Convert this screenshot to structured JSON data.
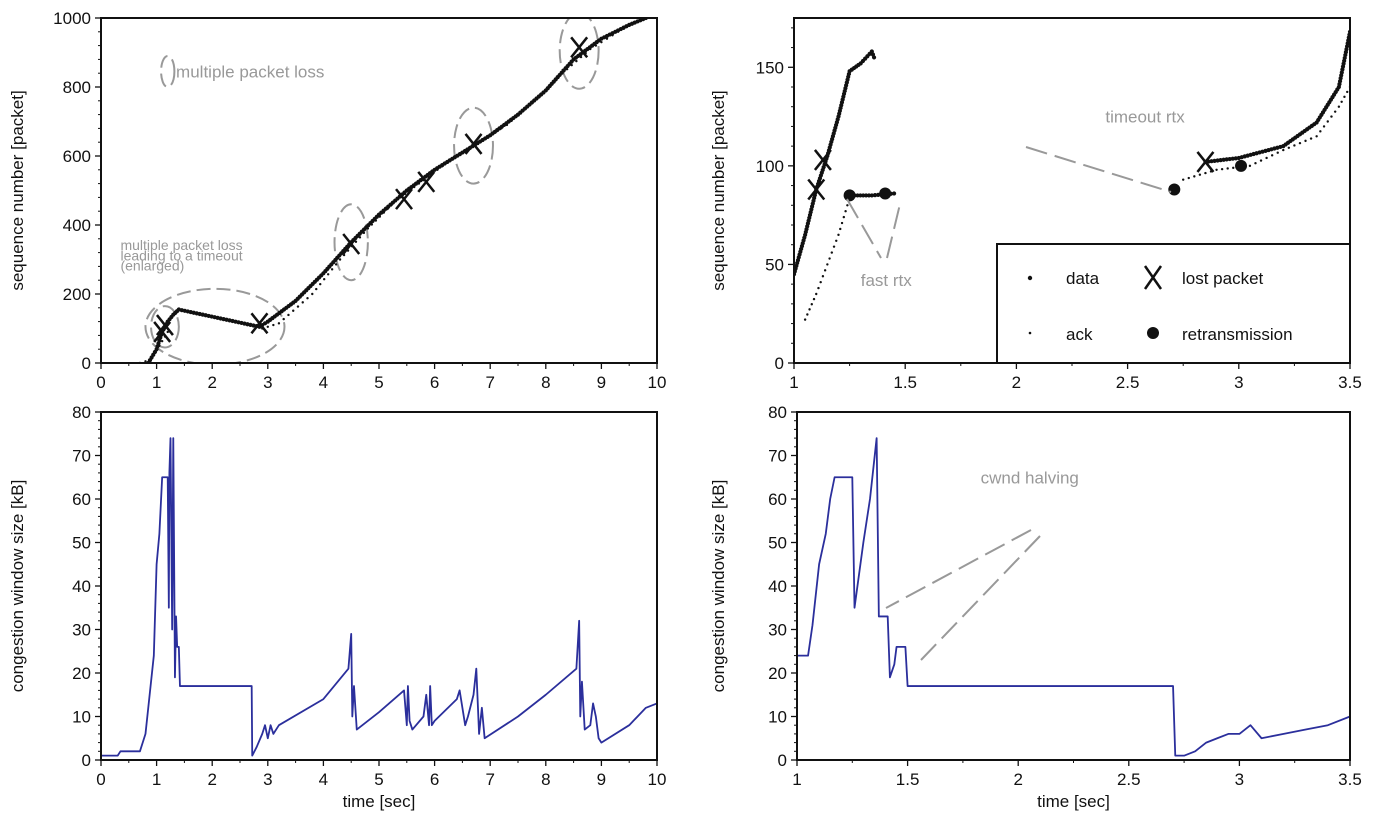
{
  "colors": {
    "cwnd_line": "#2b2f9c",
    "annotation": "#999999",
    "marks": "#111111"
  },
  "chart_data": [
    {
      "id": "seq-full",
      "type": "scatter",
      "ylabel": "sequence number [packet]",
      "xlim": [
        0,
        10
      ],
      "ylim": [
        0,
        1000
      ],
      "x_ticks": [
        "0",
        "1",
        "2",
        "3",
        "4",
        "5",
        "6",
        "7",
        "8",
        "9",
        "10"
      ],
      "y_ticks": [
        "0",
        "200",
        "400",
        "600",
        "800",
        "1000"
      ],
      "series": [
        {
          "kind": "data",
          "x": [
            0.85,
            1.0,
            1.1,
            1.2,
            1.3,
            1.4,
            2.85,
            3.0,
            3.5,
            4.0,
            4.5,
            5.0,
            5.5,
            6.0,
            6.5,
            7.0,
            7.5,
            8.0,
            8.5,
            9.0,
            9.5,
            9.8
          ],
          "y": [
            0,
            40,
            90,
            120,
            140,
            155,
            105,
            120,
            180,
            260,
            350,
            430,
            500,
            560,
            610,
            660,
            720,
            790,
            880,
            940,
            980,
            1000
          ]
        },
        {
          "kind": "ack",
          "x": [
            0.7,
            0.9,
            1.05,
            1.2,
            2.9,
            3.2,
            3.8,
            4.3,
            4.8,
            5.3,
            5.8,
            6.3,
            6.8,
            7.3,
            7.8,
            8.3,
            8.8,
            9.3,
            9.7
          ],
          "y": [
            0,
            10,
            50,
            90,
            100,
            115,
            200,
            300,
            390,
            470,
            530,
            590,
            640,
            690,
            760,
            840,
            910,
            960,
            995
          ]
        }
      ],
      "lost_packets": {
        "x": [
          1.1,
          1.15,
          2.85,
          4.5,
          5.45,
          5.85,
          6.7,
          8.6
        ],
        "y": [
          90,
          110,
          115,
          345,
          475,
          525,
          635,
          915
        ]
      },
      "annotations": [
        {
          "text": "multiple packet loss",
          "x": 1.35,
          "y": 845
        },
        {
          "text": "multiple packet loss",
          "x": 0.35,
          "y": 345
        },
        {
          "text": "leading to a timeout",
          "x": 0.35,
          "y": 315
        },
        {
          "text": "(enlarged)",
          "x": 0.35,
          "y": 285
        }
      ],
      "ellipses": [
        {
          "cx": 1.2,
          "cy": 845,
          "rx": 0.12,
          "ry": 45
        },
        {
          "cx": 1.15,
          "cy": 105,
          "rx": 0.25,
          "ry": 60
        },
        {
          "cx": 2.05,
          "cy": 105,
          "rx": 1.25,
          "ry": 110
        },
        {
          "cx": 4.5,
          "cy": 350,
          "rx": 0.3,
          "ry": 110
        },
        {
          "cx": 6.7,
          "cy": 630,
          "rx": 0.35,
          "ry": 110
        },
        {
          "cx": 8.6,
          "cy": 905,
          "rx": 0.35,
          "ry": 110
        }
      ]
    },
    {
      "id": "seq-zoom",
      "type": "scatter",
      "ylabel": "sequence number [packet]",
      "xlim": [
        1,
        3.5
      ],
      "ylim": [
        0,
        175
      ],
      "x_ticks": [
        "1",
        "1.5",
        "2",
        "2.5",
        "3",
        "3.5"
      ],
      "y_ticks": [
        "0",
        "50",
        "100",
        "150"
      ],
      "series": [
        {
          "kind": "data",
          "x": [
            1.0,
            1.05,
            1.1,
            1.15,
            1.2,
            1.25,
            1.3,
            1.35,
            1.36,
            1.26,
            1.35,
            1.45,
            2.85,
            3.0,
            3.2,
            3.35,
            3.45,
            3.5
          ],
          "y": [
            45,
            65,
            88,
            105,
            125,
            148,
            152,
            158,
            155,
            85,
            85,
            86,
            102,
            104,
            110,
            122,
            140,
            168
          ]
        },
        {
          "kind": "ack",
          "x": [
            1.05,
            1.1,
            1.15,
            1.2,
            1.24,
            2.75,
            2.9,
            3.05,
            3.2,
            3.35,
            3.45,
            3.5
          ],
          "y": [
            22,
            35,
            50,
            65,
            80,
            93,
            98,
            100,
            108,
            115,
            130,
            140
          ]
        }
      ],
      "lost_packets": {
        "x": [
          1.1,
          1.13,
          2.85
        ],
        "y": [
          88,
          103,
          102
        ]
      },
      "retransmissions": {
        "x": [
          1.25,
          1.41,
          2.71,
          3.01
        ],
        "y": [
          85,
          86,
          88,
          100
        ]
      },
      "annotations": [
        {
          "text": "timeout rtx",
          "x": 2.4,
          "y": 125
        },
        {
          "text": "fast rtx",
          "x": 1.3,
          "y": 42
        }
      ],
      "legend": {
        "position": "bottom-right",
        "entries": [
          {
            "marker": "data-dot",
            "label": "data"
          },
          {
            "marker": "x-mark",
            "label": "lost packet"
          },
          {
            "marker": "ack-dot",
            "label": "ack"
          },
          {
            "marker": "retx-dot",
            "label": "retransmission"
          }
        ]
      }
    },
    {
      "id": "cwnd-full",
      "type": "line",
      "xlabel": "time [sec]",
      "ylabel": "congestion window size [kB]",
      "xlim": [
        0,
        10
      ],
      "ylim": [
        0,
        80
      ],
      "x_ticks": [
        "0",
        "1",
        "2",
        "3",
        "4",
        "5",
        "6",
        "7",
        "8",
        "9",
        "10"
      ],
      "y_ticks": [
        "0",
        "10",
        "20",
        "30",
        "40",
        "50",
        "60",
        "70",
        "80"
      ],
      "x": [
        0,
        0.3,
        0.35,
        0.7,
        0.75,
        0.8,
        0.85,
        0.95,
        1.0,
        1.05,
        1.1,
        1.15,
        1.2,
        1.22,
        1.23,
        1.25,
        1.28,
        1.3,
        1.33,
        1.35,
        1.37,
        1.4,
        1.42,
        1.45,
        1.48,
        1.5,
        2.71,
        2.72,
        2.8,
        2.9,
        2.95,
        3.0,
        3.05,
        3.1,
        3.2,
        4.0,
        4.45,
        4.5,
        4.52,
        4.55,
        4.6,
        5.0,
        5.45,
        5.5,
        5.52,
        5.55,
        5.6,
        5.8,
        5.85,
        5.9,
        5.92,
        5.95,
        6.0,
        6.4,
        6.45,
        6.55,
        6.6,
        6.7,
        6.75,
        6.8,
        6.85,
        6.9,
        7.5,
        8.0,
        8.55,
        8.6,
        8.62,
        8.65,
        8.7,
        8.8,
        8.85,
        8.9,
        8.95,
        9.0,
        9.5,
        9.8,
        10.0
      ],
      "y": [
        1,
        1,
        2,
        2,
        4,
        6,
        12,
        24,
        45,
        52,
        65,
        65,
        65,
        35,
        66,
        74,
        30,
        74,
        19,
        33,
        26,
        26,
        17,
        17,
        17,
        17,
        17,
        1,
        3,
        6,
        8,
        5,
        8,
        6,
        8,
        14,
        21,
        29,
        10,
        17,
        7,
        11,
        16,
        8,
        17,
        9,
        7,
        10,
        15,
        8,
        17,
        8,
        9,
        14,
        16,
        8,
        10,
        15,
        21,
        6,
        12,
        5,
        10,
        15,
        21,
        32,
        10,
        18,
        7,
        8,
        13,
        10,
        5,
        4,
        8,
        12,
        13
      ]
    },
    {
      "id": "cwnd-zoom",
      "type": "line",
      "xlabel": "time [sec]",
      "ylabel": "congestion window size [kB]",
      "xlim": [
        1,
        3.5
      ],
      "ylim": [
        0,
        80
      ],
      "x_ticks": [
        "1",
        "1.5",
        "2",
        "2.5",
        "3",
        "3.5"
      ],
      "y_ticks": [
        "0",
        "10",
        "20",
        "30",
        "40",
        "50",
        "60",
        "70",
        "80"
      ],
      "x": [
        1.0,
        1.05,
        1.07,
        1.1,
        1.13,
        1.15,
        1.17,
        1.25,
        1.26,
        1.3,
        1.33,
        1.36,
        1.37,
        1.38,
        1.41,
        1.42,
        1.44,
        1.45,
        1.49,
        1.5,
        2.7,
        2.71,
        2.75,
        2.8,
        2.85,
        2.9,
        2.95,
        3.0,
        3.05,
        3.1,
        3.2,
        3.3,
        3.4,
        3.5
      ],
      "y": [
        24,
        24,
        31,
        45,
        52,
        60,
        65,
        65,
        35,
        50,
        60,
        74,
        33,
        33,
        33,
        19,
        22,
        26,
        26,
        17,
        17,
        1,
        1,
        2,
        4,
        5,
        6,
        6,
        8,
        5,
        6,
        7,
        8,
        10
      ],
      "annotations": [
        {
          "text": "cwnd halving",
          "x": 1.83,
          "y": 65
        }
      ]
    }
  ]
}
